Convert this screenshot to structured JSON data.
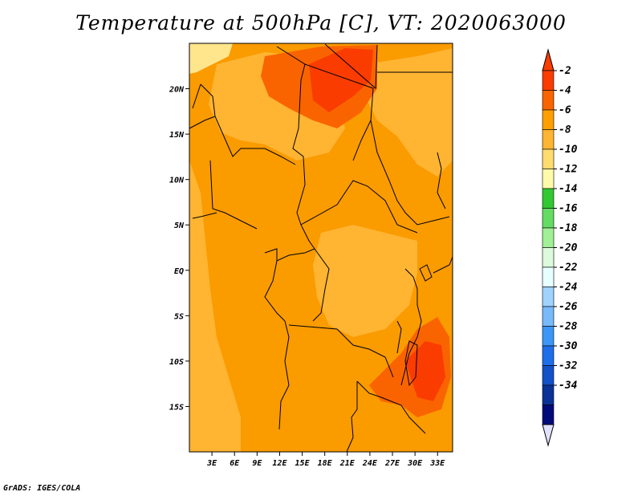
{
  "title": "Temperature at 500hPa [C], VT: 2020063000",
  "credit": "GrADS: IGES/COLA",
  "map": {
    "lat_ticks": [
      "20N",
      "15N",
      "10N",
      "5N",
      "EQ",
      "5S",
      "10S",
      "15S"
    ],
    "lat_values": [
      20,
      15,
      10,
      5,
      0,
      -5,
      -10,
      -15
    ],
    "lon_ticks": [
      "3E",
      "6E",
      "9E",
      "12E",
      "15E",
      "18E",
      "21E",
      "24E",
      "27E",
      "30E",
      "33E"
    ],
    "lon_values": [
      3,
      6,
      9,
      12,
      15,
      18,
      21,
      24,
      27,
      30,
      33
    ],
    "lat_range": [
      -20,
      25
    ],
    "lon_range": [
      0,
      35
    ]
  },
  "colorbar": {
    "labels": [
      "-2",
      "-4",
      "-6",
      "-8",
      "-10",
      "-12",
      "-14",
      "-16",
      "-18",
      "-20",
      "-22",
      "-24",
      "-26",
      "-28",
      "-30",
      "-32",
      "-34"
    ],
    "colors": [
      "#fa3c00",
      "#fa6400",
      "#ffa000",
      "#ffb432",
      "#ffdc6e",
      "#fffaaa",
      "#32c832",
      "#64dc64",
      "#a0f096",
      "#dcfadc",
      "#e6ffff",
      "#a0d2ff",
      "#78b9fa",
      "#3c96f5",
      "#1e6eeb",
      "#1450c8",
      "#0a3296",
      "#000a78"
    ],
    "top_arrow_color": "#fa3c00",
    "bottom_arrow_color": "#e1e1ff"
  },
  "field_colors": {
    "background": "#fa9b00",
    "light": "#ffb432",
    "dark": "#fa6400",
    "darkest": "#fa3c00",
    "palest": "#ffe68c"
  }
}
